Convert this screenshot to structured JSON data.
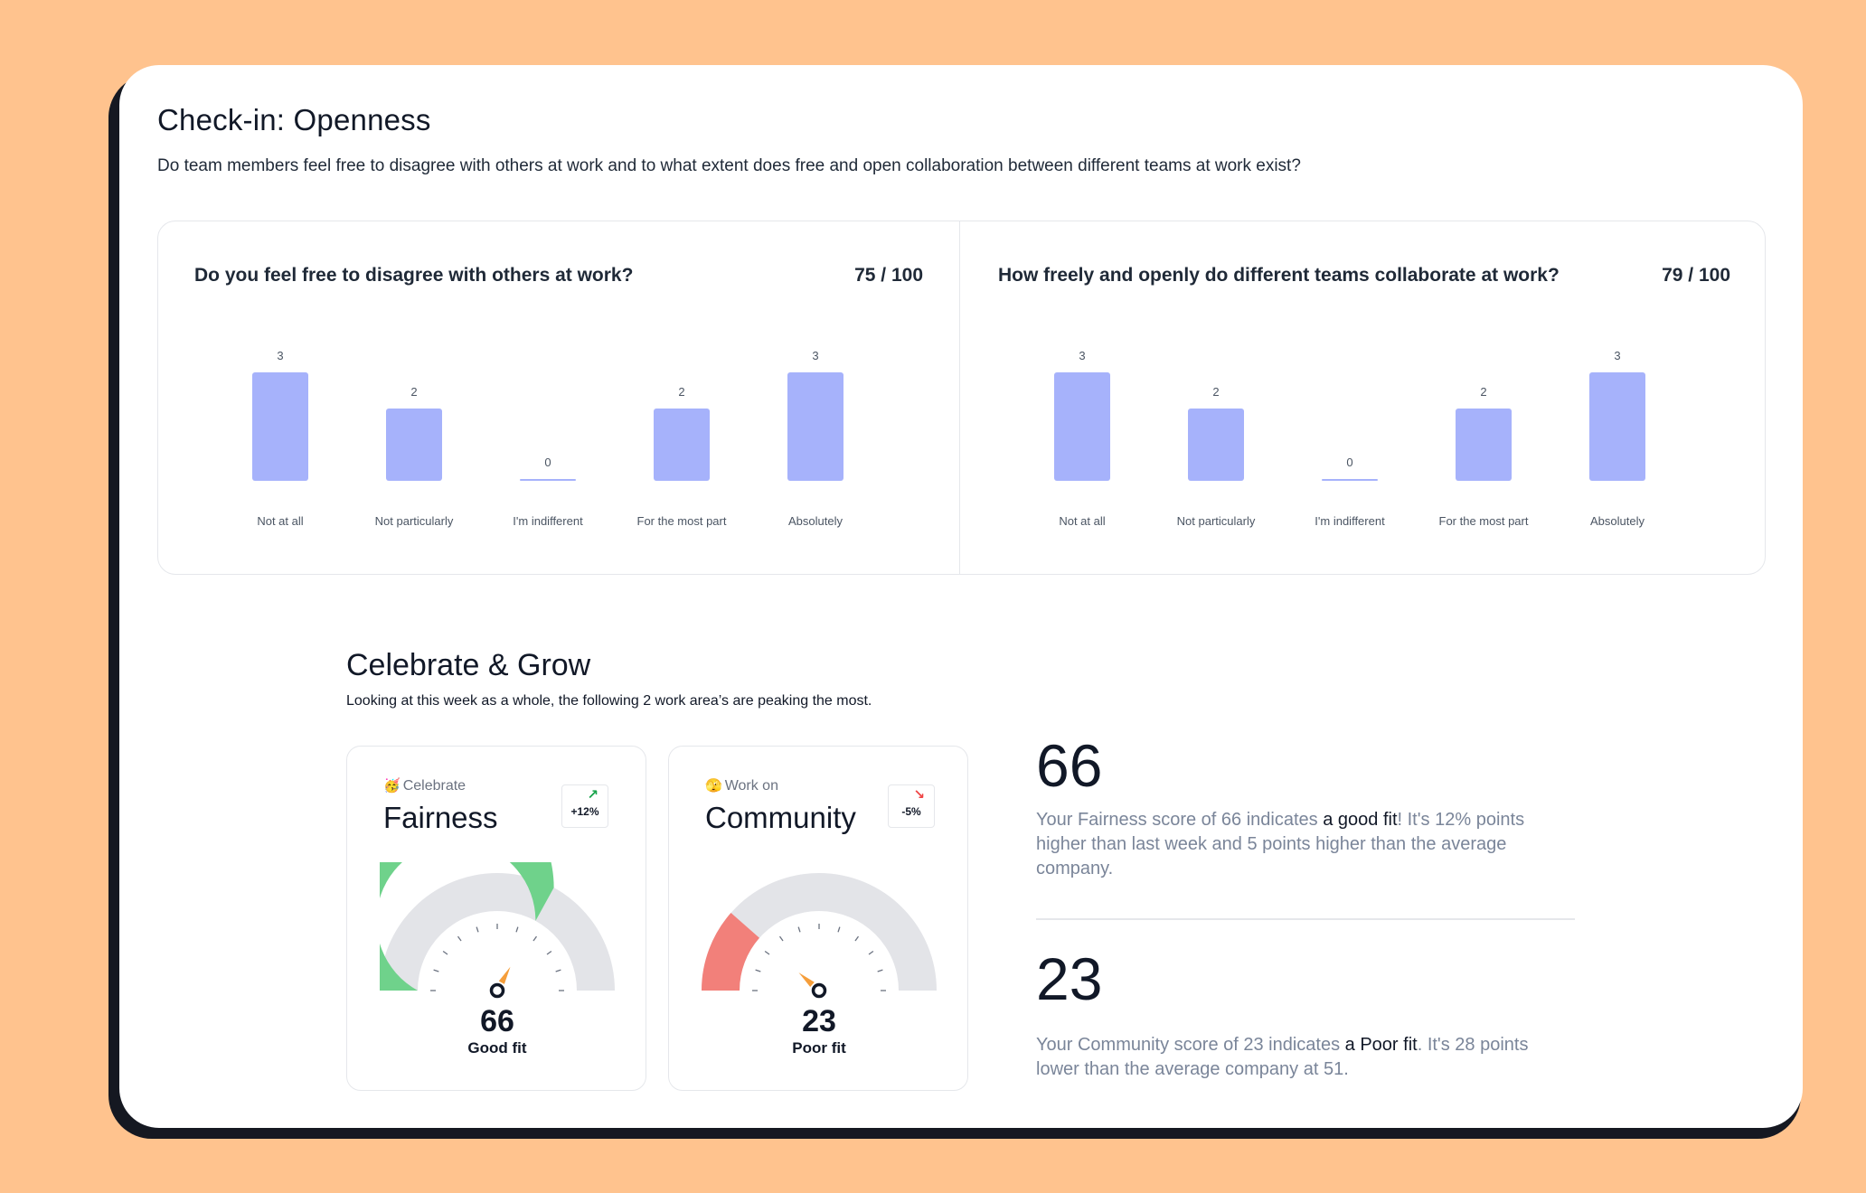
{
  "page": {
    "title": "Check-in: Openness",
    "description": "Do team members feel free to disagree with others at work and to what extent does free and open collaboration between different teams at work exist?"
  },
  "questions": [
    {
      "title": "Do you feel free to disagree with others at work?",
      "score": "75 / 100",
      "chart_data": {
        "type": "bar",
        "categories": [
          "Not at all",
          "Not particularly",
          "I'm indifferent",
          "For the most part",
          "Absolutely"
        ],
        "values": [
          3,
          2,
          0,
          2,
          3
        ],
        "ylim": [
          0,
          3
        ]
      }
    },
    {
      "title": "How freely and openly do different teams collaborate at work?",
      "score": "79 / 100",
      "chart_data": {
        "type": "bar",
        "categories": [
          "Not at all",
          "Not particularly",
          "I'm indifferent",
          "For the most part",
          "Absolutely"
        ],
        "values": [
          3,
          2,
          0,
          2,
          3
        ],
        "ylim": [
          0,
          3
        ]
      }
    }
  ],
  "celebrate": {
    "title": "Celebrate & Grow",
    "description": "Looking at this week as a whole, the following 2 work area’s are peaking the most.",
    "cards": [
      {
        "emoji": "🥳",
        "tag": "Celebrate",
        "name": "Fairness",
        "trend": "+12%",
        "trend_dir": "up",
        "score": "66",
        "score_value": 66,
        "verdict": "Good fit",
        "fill_color": "#6FD28B"
      },
      {
        "emoji": "🫣",
        "tag": "Work on",
        "name": "Community",
        "trend": "-5%",
        "trend_dir": "down",
        "score": "23",
        "score_value": 23,
        "verdict": "Poor fit",
        "fill_color": "#F2807A"
      }
    ],
    "summaries": [
      {
        "number": "66",
        "text_before": "Your Fairness score of 66 indicates ",
        "highlight": "a good fit",
        "text_after": "! It's 12% points higher than last week and 5 points higher than the average company."
      },
      {
        "number": "23",
        "text_before": "Your Community score of 23 indicates ",
        "highlight": "a Poor fit",
        "text_after": ". It's 28 points lower than the average company at 51."
      }
    ]
  },
  "colors": {
    "background": "#FFC38E",
    "bar": "#A6B2FB",
    "gauge_track": "#E3E4E8",
    "needle": "#F59E3B"
  }
}
